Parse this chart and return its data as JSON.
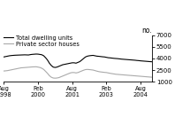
{
  "title": "",
  "ylabel": "no.",
  "ylim": [
    1000,
    7000
  ],
  "yticks": [
    1000,
    2500,
    4000,
    5500,
    7000
  ],
  "ytick_labels": [
    "1000",
    "2500",
    "4000",
    "5500",
    "7000"
  ],
  "xtick_labels": [
    "Aug\n1998",
    "Feb\n2000",
    "Aug\n2001",
    "Feb\n2003",
    "Aug\n2004"
  ],
  "legend_items": [
    "Total dwelling units",
    "Private sector houses"
  ],
  "line_colors": [
    "#000000",
    "#aaaaaa"
  ],
  "background_color": "#ffffff",
  "total_x": [
    0,
    1,
    2,
    3,
    4,
    5,
    6,
    7,
    8,
    9,
    10,
    11,
    12,
    13,
    14,
    15,
    16,
    17,
    18,
    19,
    20,
    21,
    22,
    23,
    24,
    25,
    26,
    27,
    28,
    29,
    30,
    31,
    32,
    33,
    34,
    35,
    36,
    37,
    38,
    39,
    40,
    41,
    42,
    43,
    44,
    45,
    46,
    47,
    48,
    49,
    50,
    51,
    52,
    53,
    54,
    55,
    56,
    57,
    58,
    59,
    60,
    61,
    62,
    63,
    64,
    65,
    66,
    67,
    68,
    69,
    70,
    71,
    72,
    73,
    74,
    75,
    76,
    77,
    78
  ],
  "total_y": [
    4200,
    4250,
    4300,
    4350,
    4380,
    4400,
    4420,
    4430,
    4440,
    4450,
    4460,
    4470,
    4460,
    4450,
    4500,
    4530,
    4550,
    4570,
    4560,
    4520,
    4480,
    4350,
    4100,
    3800,
    3400,
    3100,
    2900,
    2850,
    2900,
    3000,
    3100,
    3200,
    3250,
    3300,
    3350,
    3400,
    3450,
    3450,
    3400,
    3500,
    3600,
    3800,
    4000,
    4200,
    4300,
    4350,
    4380,
    4400,
    4350,
    4300,
    4280,
    4250,
    4220,
    4200,
    4150,
    4100,
    4080,
    4050,
    4020,
    4000,
    3980,
    3950,
    3920,
    3900,
    3880,
    3860,
    3840,
    3820,
    3800,
    3780,
    3750,
    3730,
    3700,
    3680,
    3660,
    3640,
    3620,
    3600,
    3580
  ],
  "private_x": [
    0,
    1,
    2,
    3,
    4,
    5,
    6,
    7,
    8,
    9,
    10,
    11,
    12,
    13,
    14,
    15,
    16,
    17,
    18,
    19,
    20,
    21,
    22,
    23,
    24,
    25,
    26,
    27,
    28,
    29,
    30,
    31,
    32,
    33,
    34,
    35,
    36,
    37,
    38,
    39,
    40,
    41,
    42,
    43,
    44,
    45,
    46,
    47,
    48,
    49,
    50,
    51,
    52,
    53,
    54,
    55,
    56,
    57,
    58,
    59,
    60,
    61,
    62,
    63,
    64,
    65,
    66,
    67,
    68,
    69,
    70,
    71,
    72,
    73,
    74,
    75,
    76,
    77,
    78
  ],
  "private_y": [
    2400,
    2420,
    2450,
    2500,
    2550,
    2600,
    2650,
    2700,
    2750,
    2800,
    2820,
    2840,
    2860,
    2880,
    2900,
    2920,
    2930,
    2940,
    2900,
    2850,
    2750,
    2600,
    2350,
    2100,
    1800,
    1600,
    1500,
    1480,
    1500,
    1550,
    1650,
    1750,
    1850,
    1950,
    2050,
    2150,
    2200,
    2200,
    2150,
    2200,
    2300,
    2400,
    2500,
    2580,
    2600,
    2580,
    2550,
    2520,
    2450,
    2380,
    2320,
    2280,
    2250,
    2220,
    2200,
    2150,
    2100,
    2060,
    2020,
    1980,
    1960,
    1940,
    1920,
    1900,
    1880,
    1860,
    1840,
    1820,
    1800,
    1780,
    1760,
    1740,
    1720,
    1700,
    1680,
    1660,
    1640,
    1620,
    1600
  ],
  "xtick_positions": [
    0,
    18,
    36,
    54,
    72
  ]
}
